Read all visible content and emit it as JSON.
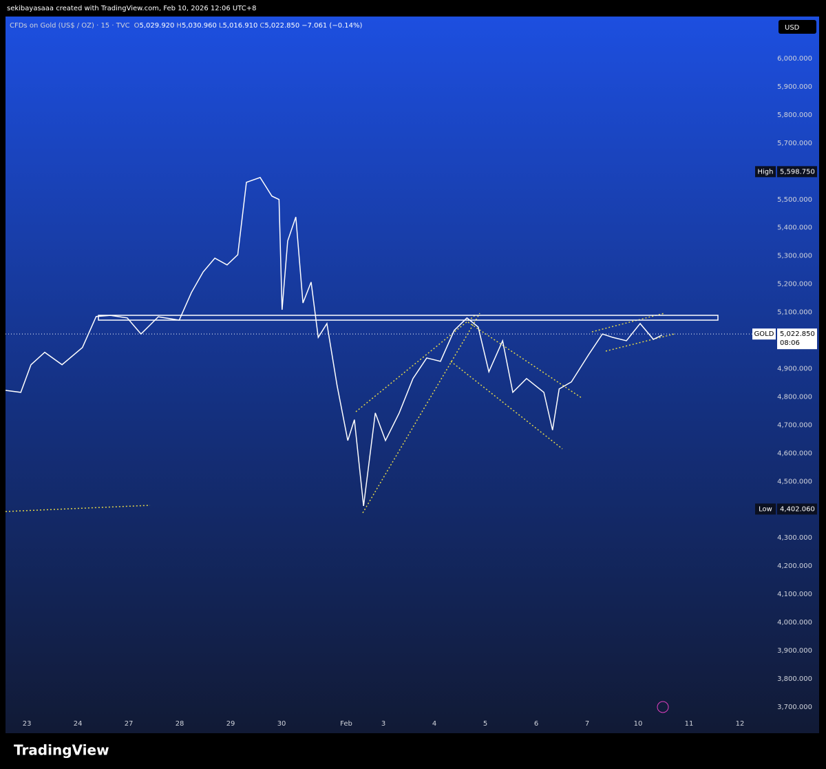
{
  "header": {
    "attribution": "sekibayasaaa created with TradingView.com, Feb 10, 2026 12:06 UTC+8",
    "symbol": "CFDs on Gold (US$ / OZ) · 15 · TVC",
    "ohlc": [
      {
        "key": "O",
        "text": "5,029.920"
      },
      {
        "key": "H",
        "text": "5,030.960"
      },
      {
        "key": "L",
        "text": "5,016.910"
      },
      {
        "key": "C",
        "text": "5,022.850"
      }
    ],
    "change": "−7.061 (−0.14%)",
    "currency": "USD"
  },
  "footer": {
    "brand": "TradingView"
  },
  "chart_data": {
    "type": "line",
    "x": [
      -0.42,
      -0.12,
      0.08,
      0.35,
      0.69,
      1.09,
      1.36,
      1.64,
      1.97,
      2.24,
      2.58,
      2.99,
      3.23,
      3.46,
      3.69,
      3.93,
      4.14,
      4.31,
      4.58,
      4.81,
      4.95,
      5.01,
      5.12,
      5.28,
      5.42,
      5.58,
      5.72,
      5.89,
      6.09,
      6.3,
      6.43,
      6.61,
      6.84,
      7.04,
      7.31,
      7.58,
      7.85,
      8.12,
      8.39,
      8.64,
      8.86,
      9.07,
      9.34,
      9.54,
      9.81,
      10.15,
      10.32,
      10.45,
      10.69,
      11.03,
      11.3,
      11.5,
      11.77,
      12.04,
      12.3,
      12.47
    ],
    "series": [
      {
        "name": "GOLD",
        "color": "#ffffff",
        "values": [
          4823,
          4816,
          4914,
          4958,
          4914,
          4975,
          5085,
          5089,
          5080,
          5023,
          5084,
          5072,
          5170,
          5243,
          5292,
          5268,
          5304,
          5561,
          5578,
          5512,
          5500,
          5109,
          5353,
          5438,
          5133,
          5207,
          5011,
          5060,
          4840,
          4645,
          4719,
          4413,
          4743,
          4645,
          4743,
          4865,
          4938,
          4926,
          5036,
          5080,
          5048,
          4889,
          4999,
          4816,
          4865,
          4816,
          4682,
          4828,
          4853,
          4950,
          5023,
          5011,
          4999,
          5060,
          5004,
          5019
        ]
      }
    ],
    "xlim": [
      -0.42,
      14.27
    ],
    "xticks": [
      {
        "value": 0,
        "label": "23"
      },
      {
        "value": 1,
        "label": "24"
      },
      {
        "value": 2,
        "label": "27"
      },
      {
        "value": 3,
        "label": "28"
      },
      {
        "value": 4,
        "label": "29"
      },
      {
        "value": 5,
        "label": "30"
      },
      {
        "value": 6.27,
        "label": "Feb"
      },
      {
        "value": 7,
        "label": "3"
      },
      {
        "value": 8,
        "label": "4"
      },
      {
        "value": 9,
        "label": "5"
      },
      {
        "value": 10,
        "label": "6"
      },
      {
        "value": 11,
        "label": "7"
      },
      {
        "value": 12,
        "label": "10"
      },
      {
        "value": 13,
        "label": "11"
      },
      {
        "value": 14,
        "label": "12"
      }
    ],
    "ylim": [
      3607,
      6149
    ],
    "yticks": [
      {
        "value": 3700,
        "label": "3,700.000"
      },
      {
        "value": 3800,
        "label": "3,800.000"
      },
      {
        "value": 3900,
        "label": "3,900.000"
      },
      {
        "value": 4000,
        "label": "4,000.000"
      },
      {
        "value": 4100,
        "label": "4,100.000"
      },
      {
        "value": 4200,
        "label": "4,200.000"
      },
      {
        "value": 4300,
        "label": "4,300.000"
      },
      {
        "value": 4400,
        "label": "4,400.000"
      },
      {
        "value": 4500,
        "label": "4,500.000"
      },
      {
        "value": 4600,
        "label": "4,600.000"
      },
      {
        "value": 4700,
        "label": "4,700.000"
      },
      {
        "value": 4800,
        "label": "4,800.000"
      },
      {
        "value": 4900,
        "label": "4,900.000"
      },
      {
        "value": 5000,
        "label": "5,000.000"
      },
      {
        "value": 5100,
        "label": "5,100.000"
      },
      {
        "value": 5200,
        "label": "5,200.000"
      },
      {
        "value": 5300,
        "label": "5,300.000"
      },
      {
        "value": 5400,
        "label": "5,400.000"
      },
      {
        "value": 5500,
        "label": "5,500.000"
      },
      {
        "value": 5600,
        "label": "5,600.000"
      },
      {
        "value": 5700,
        "label": "5,700.000"
      },
      {
        "value": 5800,
        "label": "5,800.000"
      },
      {
        "value": 5900,
        "label": "5,900.000"
      },
      {
        "value": 6000,
        "label": "6,000.000"
      }
    ],
    "markers": [
      {
        "name": "High",
        "value": 5598.75,
        "value_label": "5,598.750"
      },
      {
        "name": "Low",
        "value": 4402.06,
        "value_label": "4,402.060"
      }
    ],
    "last_price": {
      "name": "GOLD",
      "value": 5022.85,
      "value_label": "5,022.850",
      "countdown": "08:06"
    }
  }
}
